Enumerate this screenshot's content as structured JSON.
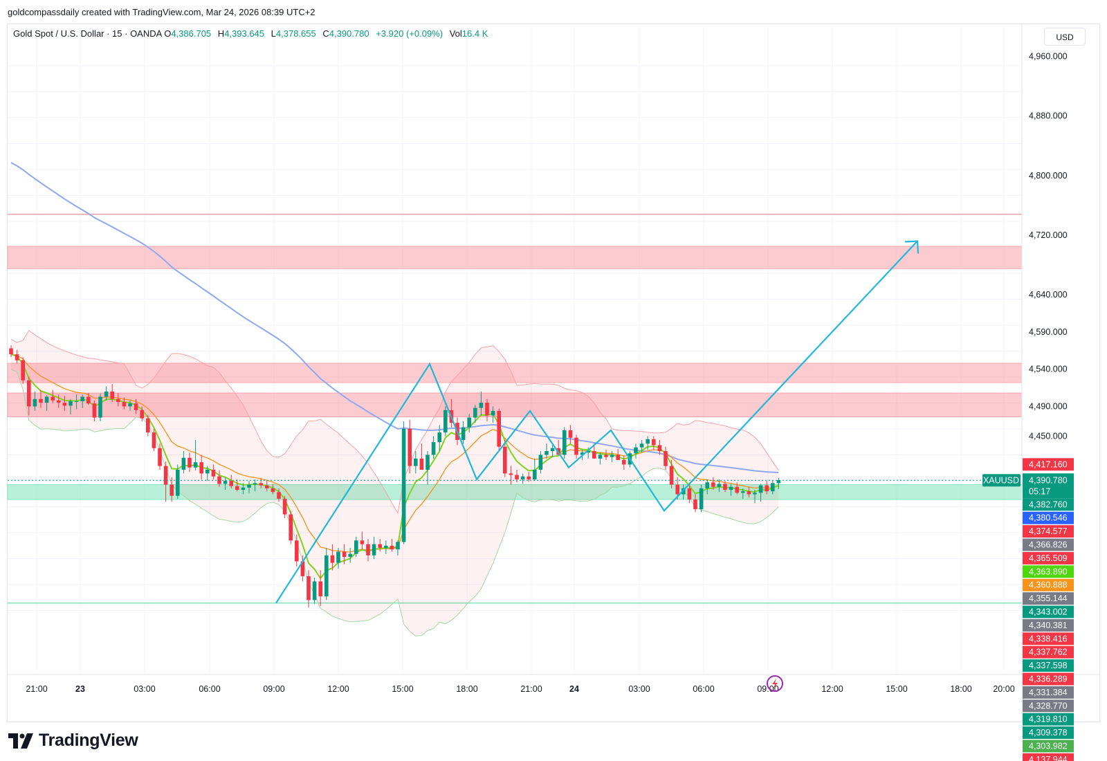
{
  "attribution": "goldcompassdaily created with TradingView.com, Mar 24, 2026 08:39 UTC+2",
  "legend": {
    "symbol": "Gold Spot / U.S. Dollar · 15 · OANDA",
    "o_label": "O",
    "o": "4,386.705",
    "h_label": "H",
    "h": "4,393.645",
    "l_label": "L",
    "l": "4,378.655",
    "c_label": "C",
    "c": "4,390.780",
    "change": "+3.920 (+0.09%)",
    "vol_label": "Vol",
    "vol": "16.4 K"
  },
  "currency": "USD",
  "branding": {
    "name": "TradingView"
  },
  "colors": {
    "up": "#089981",
    "down": "#f23645",
    "ema_fast": "#7ed321",
    "ema_mid": "#f7931a",
    "ema_slow": "#8fa8f0",
    "projection": "#1fb8d8",
    "resistance_zone": "#f7a1a8",
    "support_zone": "#7de3b9"
  },
  "chart_data": {
    "type": "candlestick",
    "symbol": "XAUUSD",
    "timeframe": "15",
    "y_ticks": [
      "4,960.000",
      "4,880.000",
      "4,800.000",
      "4,720.000",
      "4,640.000",
      "4,590.000",
      "4,540.000",
      "4,490.000",
      "4,450.000"
    ],
    "x_ticks": [
      "21:00",
      "23",
      "03:00",
      "06:00",
      "09:00",
      "12:00",
      "15:00",
      "18:00",
      "21:00",
      "24",
      "03:00",
      "06:00",
      "09:00",
      "12:00",
      "15:00",
      "18:00",
      "20:00"
    ],
    "current_price": {
      "symbol": "XAUUSD",
      "price": "4,390.780",
      "countdown": "05:17"
    },
    "price_tags": [
      {
        "value": "4,417.160",
        "color": "#f23645"
      },
      {
        "value": "4,382.760",
        "color": "#089981"
      },
      {
        "value": "4,380.546",
        "color": "#2962ff"
      },
      {
        "value": "4,374.577",
        "color": "#f23645"
      },
      {
        "value": "4,366.826",
        "color": "#787b86"
      },
      {
        "value": "4,365.509",
        "color": "#f23645"
      },
      {
        "value": "4,363.890",
        "color": "#4ed70f"
      },
      {
        "value": "4,360.888",
        "color": "#f7931a"
      },
      {
        "value": "4,355.144",
        "color": "#787b86"
      },
      {
        "value": "4,343.002",
        "color": "#089981"
      },
      {
        "value": "4,340.381",
        "color": "#787b86"
      },
      {
        "value": "4,338.416",
        "color": "#f23645"
      },
      {
        "value": "4,337.762",
        "color": "#f23645"
      },
      {
        "value": "4,337.598",
        "color": "#089981"
      },
      {
        "value": "4,336.289",
        "color": "#f23645"
      },
      {
        "value": "4,331.384",
        "color": "#787b86"
      },
      {
        "value": "4,328.770",
        "color": "#787b86"
      },
      {
        "value": "4,319.810",
        "color": "#089981"
      },
      {
        "value": "4,309.378",
        "color": "#089981"
      },
      {
        "value": "4,303.982",
        "color": "#4caf50"
      },
      {
        "value": "4,137.944",
        "color": "#f23645"
      }
    ],
    "zones": [
      {
        "kind": "resistance",
        "from": 4675,
        "to": 4705
      },
      {
        "kind": "resistance",
        "from": 4522,
        "to": 4548
      },
      {
        "kind": "resistance",
        "from": 4476,
        "to": 4508
      },
      {
        "kind": "support",
        "from": 4365,
        "to": 4385
      }
    ],
    "levels": [
      {
        "kind": "resistance",
        "value": 4748
      },
      {
        "kind": "support",
        "value": 4226
      }
    ],
    "candles": [
      [
        4568,
        4572,
        4556,
        4560
      ],
      [
        4560,
        4566,
        4548,
        4552
      ],
      [
        4552,
        4556,
        4520,
        4525
      ],
      [
        4525,
        4530,
        4478,
        4490
      ],
      [
        4490,
        4510,
        4484,
        4500
      ],
      [
        4500,
        4512,
        4488,
        4495
      ],
      [
        4495,
        4505,
        4484,
        4503
      ],
      [
        4503,
        4512,
        4494,
        4498
      ],
      [
        4498,
        4506,
        4488,
        4495
      ],
      [
        4495,
        4504,
        4484,
        4491
      ],
      [
        4491,
        4500,
        4479,
        4497
      ],
      [
        4497,
        4506,
        4486,
        4497
      ],
      [
        4497,
        4506,
        4488,
        4503
      ],
      [
        4503,
        4508,
        4492,
        4494
      ],
      [
        4494,
        4498,
        4470,
        4475
      ],
      [
        4475,
        4507,
        4470,
        4503
      ],
      [
        4503,
        4517,
        4498,
        4510
      ],
      [
        4510,
        4520,
        4496,
        4500
      ],
      [
        4500,
        4508,
        4490,
        4496
      ],
      [
        4496,
        4502,
        4486,
        4490
      ],
      [
        4490,
        4498,
        4484,
        4494
      ],
      [
        4494,
        4500,
        4480,
        4485
      ],
      [
        4485,
        4490,
        4470,
        4474
      ],
      [
        4474,
        4478,
        4450,
        4455
      ],
      [
        4455,
        4460,
        4430,
        4434
      ],
      [
        4434,
        4440,
        4405,
        4410
      ],
      [
        4410,
        4416,
        4362,
        4385
      ],
      [
        4385,
        4395,
        4362,
        4370
      ],
      [
        4370,
        4412,
        4366,
        4405
      ],
      [
        4405,
        4430,
        4400,
        4421
      ],
      [
        4421,
        4428,
        4402,
        4408
      ],
      [
        4408,
        4445,
        4404,
        4415
      ],
      [
        4415,
        4425,
        4392,
        4400
      ],
      [
        4400,
        4410,
        4390,
        4405
      ],
      [
        4405,
        4412,
        4392,
        4396
      ],
      [
        4396,
        4404,
        4382,
        4386
      ],
      [
        4386,
        4395,
        4378,
        4390
      ],
      [
        4390,
        4398,
        4380,
        4383
      ],
      [
        4383,
        4392,
        4376,
        4378
      ],
      [
        4378,
        4387,
        4372,
        4381
      ],
      [
        4381,
        4390,
        4374,
        4385
      ],
      [
        4385,
        4392,
        4376,
        4387
      ],
      [
        4387,
        4394,
        4380,
        4384
      ],
      [
        4384,
        4390,
        4376,
        4380
      ],
      [
        4380,
        4386,
        4372,
        4375
      ],
      [
        4375,
        4380,
        4362,
        4366
      ],
      [
        4366,
        4370,
        4340,
        4345
      ],
      [
        4345,
        4350,
        4305,
        4310
      ],
      [
        4310,
        4318,
        4275,
        4282
      ],
      [
        4282,
        4290,
        4255,
        4262
      ],
      [
        4262,
        4270,
        4220,
        4230
      ],
      [
        4230,
        4260,
        4225,
        4255
      ],
      [
        4255,
        4270,
        4222,
        4235
      ],
      [
        4235,
        4300,
        4230,
        4290
      ],
      [
        4290,
        4305,
        4270,
        4280
      ],
      [
        4280,
        4300,
        4272,
        4295
      ],
      [
        4295,
        4305,
        4278,
        4288
      ],
      [
        4288,
        4300,
        4280,
        4292
      ],
      [
        4292,
        4315,
        4288,
        4310
      ],
      [
        4310,
        4322,
        4298,
        4305
      ],
      [
        4305,
        4312,
        4282,
        4290
      ],
      [
        4290,
        4315,
        4285,
        4305
      ],
      [
        4305,
        4312,
        4295,
        4300
      ],
      [
        4300,
        4310,
        4292,
        4303
      ],
      [
        4303,
        4312,
        4295,
        4298
      ],
      [
        4298,
        4310,
        4290,
        4308
      ],
      [
        4308,
        4470,
        4305,
        4460
      ],
      [
        4460,
        4472,
        4400,
        4410
      ],
      [
        4410,
        4430,
        4400,
        4420
      ],
      [
        4420,
        4440,
        4412,
        4405
      ],
      [
        4405,
        4430,
        4385,
        4425
      ],
      [
        4425,
        4450,
        4420,
        4442
      ],
      [
        4442,
        4465,
        4430,
        4455
      ],
      [
        4455,
        4490,
        4450,
        4485
      ],
      [
        4485,
        4500,
        4462,
        4468
      ],
      [
        4468,
        4475,
        4438,
        4445
      ],
      [
        4445,
        4470,
        4440,
        4462
      ],
      [
        4462,
        4480,
        4455,
        4475
      ],
      [
        4475,
        4492,
        4468,
        4488
      ],
      [
        4488,
        4510,
        4478,
        4495
      ],
      [
        4495,
        4500,
        4470,
        4478
      ],
      [
        4478,
        4490,
        4468,
        4484
      ],
      [
        4484,
        4487,
        4430,
        4436
      ],
      [
        4436,
        4445,
        4395,
        4400
      ],
      [
        4400,
        4410,
        4385,
        4398
      ],
      [
        4398,
        4405,
        4388,
        4392
      ],
      [
        4392,
        4400,
        4386,
        4396
      ],
      [
        4396,
        4402,
        4389,
        4392
      ],
      [
        4392,
        4420,
        4390,
        4405
      ],
      [
        4405,
        4430,
        4400,
        4425
      ],
      [
        4425,
        4440,
        4420,
        4430
      ],
      [
        4430,
        4438,
        4422,
        4434
      ],
      [
        4434,
        4445,
        4428,
        4425
      ],
      [
        4425,
        4462,
        4420,
        4458
      ],
      [
        4458,
        4465,
        4440,
        4448
      ],
      [
        4448,
        4452,
        4420,
        4425
      ],
      [
        4425,
        4432,
        4418,
        4428
      ],
      [
        4428,
        4435,
        4420,
        4430
      ],
      [
        4430,
        4440,
        4425,
        4420
      ],
      [
        4420,
        4428,
        4412,
        4425
      ],
      [
        4425,
        4432,
        4418,
        4422
      ],
      [
        4422,
        4430,
        4415,
        4425
      ],
      [
        4425,
        4433,
        4418,
        4418
      ],
      [
        4418,
        4424,
        4405,
        4412
      ],
      [
        4412,
        4430,
        4408,
        4427
      ],
      [
        4427,
        4440,
        4420,
        4435
      ],
      [
        4435,
        4445,
        4428,
        4440
      ],
      [
        4440,
        4450,
        4432,
        4446
      ],
      [
        4446,
        4450,
        4432,
        4438
      ],
      [
        4438,
        4445,
        4425,
        4430
      ],
      [
        4430,
        4436,
        4405,
        4410
      ],
      [
        4410,
        4418,
        4380,
        4385
      ],
      [
        4385,
        4395,
        4365,
        4372
      ],
      [
        4372,
        4385,
        4365,
        4380
      ],
      [
        4380,
        4385,
        4360,
        4365
      ],
      [
        4365,
        4372,
        4348,
        4352
      ],
      [
        4352,
        4385,
        4348,
        4380
      ],
      [
        4380,
        4392,
        4372,
        4388
      ],
      [
        4388,
        4395,
        4378,
        4382
      ],
      [
        4382,
        4392,
        4375,
        4386
      ],
      [
        4386,
        4390,
        4375,
        4378
      ],
      [
        4378,
        4386,
        4370,
        4382
      ],
      [
        4382,
        4388,
        4372,
        4374
      ],
      [
        4374,
        4380,
        4366,
        4376
      ],
      [
        4376,
        4382,
        4368,
        4372
      ],
      [
        4372,
        4378,
        4360,
        4374
      ],
      [
        4374,
        4386,
        4362,
        4384
      ],
      [
        4384,
        4390,
        4372,
        4376
      ],
      [
        4376,
        4390,
        4372,
        4387
      ],
      [
        4387,
        4394,
        4379,
        4391
      ]
    ],
    "projection_path": [
      [
        4226,
        0
      ],
      [
        4547,
        17
      ],
      [
        4392,
        31
      ],
      [
        4484,
        37
      ],
      [
        4408,
        41
      ],
      [
        4458,
        45
      ],
      [
        4350,
        49
      ],
      [
        4712,
        64
      ]
    ],
    "y_range": [
      4130,
      4980
    ],
    "grid": true
  }
}
